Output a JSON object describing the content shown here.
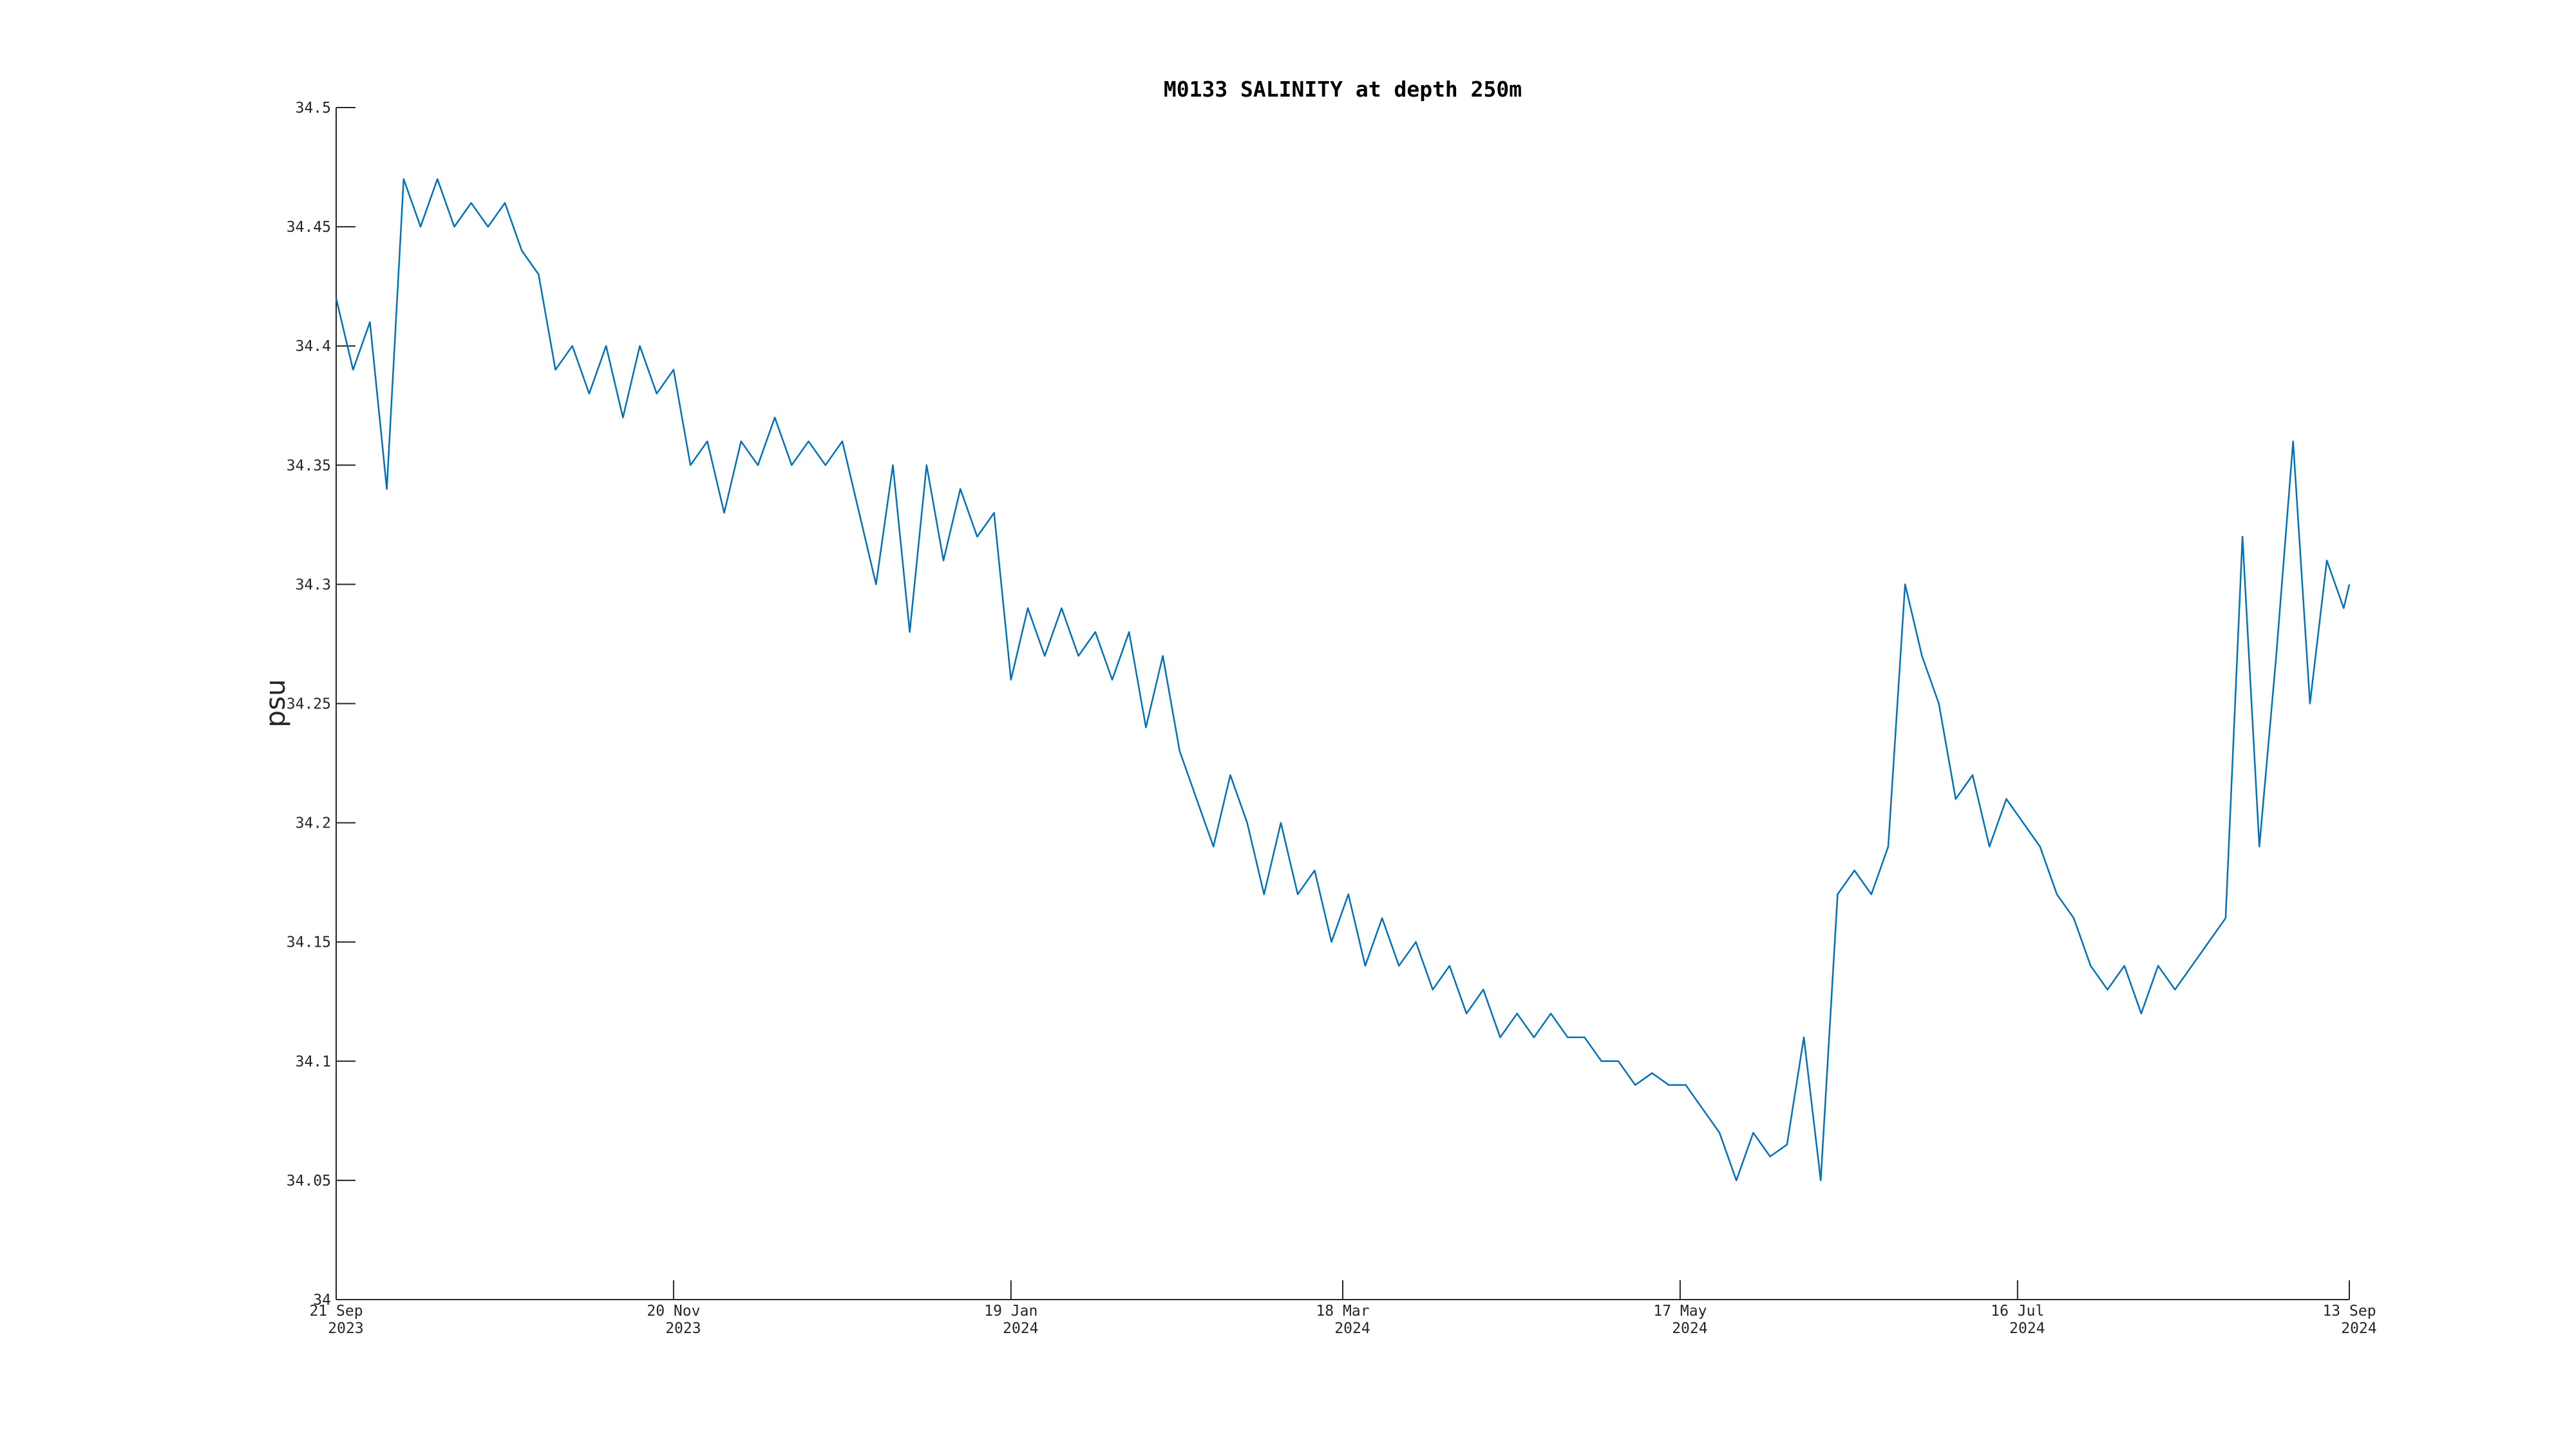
{
  "chart_data": {
    "type": "line",
    "title": "M0133 SALINITY at depth 250m",
    "y_label": "psu",
    "x": [
      "2023-09-21",
      "2023-09-24",
      "2023-09-27",
      "2023-09-30",
      "2023-10-03",
      "2023-10-06",
      "2023-10-09",
      "2023-10-12",
      "2023-10-15",
      "2023-10-18",
      "2023-10-21",
      "2023-10-24",
      "2023-10-27",
      "2023-10-30",
      "2023-11-02",
      "2023-11-05",
      "2023-11-08",
      "2023-11-11",
      "2023-11-14",
      "2023-11-17",
      "2023-11-20",
      "2023-11-23",
      "2023-11-26",
      "2023-11-29",
      "2023-12-02",
      "2023-12-05",
      "2023-12-08",
      "2023-12-11",
      "2023-12-14",
      "2023-12-17",
      "2023-12-20",
      "2023-12-23",
      "2023-12-26",
      "2023-12-29",
      "2024-01-01",
      "2024-01-04",
      "2024-01-07",
      "2024-01-10",
      "2024-01-13",
      "2024-01-16",
      "2024-01-19",
      "2024-01-22",
      "2024-01-25",
      "2024-01-28",
      "2024-01-31",
      "2024-02-03",
      "2024-02-06",
      "2024-02-09",
      "2024-02-12",
      "2024-02-15",
      "2024-02-18",
      "2024-02-21",
      "2024-02-24",
      "2024-02-27",
      "2024-03-01",
      "2024-03-04",
      "2024-03-07",
      "2024-03-10",
      "2024-03-13",
      "2024-03-16",
      "2024-03-19",
      "2024-03-22",
      "2024-03-25",
      "2024-03-28",
      "2024-03-31",
      "2024-04-03",
      "2024-04-06",
      "2024-04-09",
      "2024-04-12",
      "2024-04-15",
      "2024-04-18",
      "2024-04-21",
      "2024-04-24",
      "2024-04-27",
      "2024-04-30",
      "2024-05-03",
      "2024-05-06",
      "2024-05-09",
      "2024-05-12",
      "2024-05-15",
      "2024-05-18",
      "2024-05-21",
      "2024-05-24",
      "2024-05-27",
      "2024-05-30",
      "2024-06-02",
      "2024-06-05",
      "2024-06-08",
      "2024-06-11",
      "2024-06-14",
      "2024-06-17",
      "2024-06-20",
      "2024-06-23",
      "2024-06-26",
      "2024-06-29",
      "2024-07-02",
      "2024-07-05",
      "2024-07-08",
      "2024-07-11",
      "2024-07-14",
      "2024-07-17",
      "2024-07-20",
      "2024-07-23",
      "2024-07-26",
      "2024-07-29",
      "2024-08-01",
      "2024-08-04",
      "2024-08-07",
      "2024-08-10",
      "2024-08-13",
      "2024-08-16",
      "2024-08-19",
      "2024-08-22",
      "2024-08-25",
      "2024-08-28",
      "2024-08-31",
      "2024-09-03",
      "2024-09-06",
      "2024-09-09",
      "2024-09-12",
      "2024-09-13"
    ],
    "series": [
      {
        "color": "#0072bd",
        "values": [
          34.42,
          34.39,
          34.41,
          34.34,
          34.47,
          34.45,
          34.47,
          34.45,
          34.46,
          34.45,
          34.46,
          34.44,
          34.43,
          34.39,
          34.4,
          34.38,
          34.4,
          34.37,
          34.4,
          34.38,
          34.39,
          34.35,
          34.36,
          34.33,
          34.36,
          34.35,
          34.37,
          34.35,
          34.36,
          34.35,
          34.36,
          34.33,
          34.3,
          34.35,
          34.28,
          34.35,
          34.31,
          34.34,
          34.32,
          34.33,
          34.26,
          34.29,
          34.27,
          34.29,
          34.27,
          34.28,
          34.26,
          34.28,
          34.24,
          34.27,
          34.23,
          34.21,
          34.19,
          34.22,
          34.2,
          34.17,
          34.2,
          34.17,
          34.18,
          34.15,
          34.17,
          34.14,
          34.16,
          34.14,
          34.15,
          34.13,
          34.14,
          34.12,
          34.13,
          34.11,
          34.12,
          34.11,
          34.12,
          34.11,
          34.11,
          34.1,
          34.1,
          34.09,
          34.095,
          34.09,
          34.09,
          34.08,
          34.07,
          34.05,
          34.07,
          34.06,
          34.065,
          34.11,
          34.05,
          34.17,
          34.18,
          34.17,
          34.19,
          34.3,
          34.27,
          34.25,
          34.21,
          34.22,
          34.19,
          34.21,
          34.2,
          34.19,
          34.17,
          34.16,
          34.14,
          34.13,
          34.14,
          34.12,
          34.14,
          34.13,
          34.14,
          34.15,
          34.16,
          34.32,
          34.19,
          34.27,
          34.36,
          34.25,
          34.31,
          34.29,
          34.3
        ]
      }
    ],
    "xlim": [
      "2023-09-21",
      "2024-09-13"
    ],
    "xticks": [
      {
        "value": "2023-09-21",
        "label": [
          "21 Sep",
          "2023"
        ]
      },
      {
        "value": "2023-11-20",
        "label": [
          "20 Nov",
          "2023"
        ]
      },
      {
        "value": "2024-01-19",
        "label": [
          "19 Jan",
          "2024"
        ]
      },
      {
        "value": "2024-03-18",
        "label": [
          "18 Mar",
          "2024"
        ]
      },
      {
        "value": "2024-05-17",
        "label": [
          "17 May",
          "2024"
        ]
      },
      {
        "value": "2024-07-16",
        "label": [
          "16 Jul",
          "2024"
        ]
      },
      {
        "value": "2024-09-13",
        "label": [
          "13 Sep",
          "2024"
        ]
      }
    ],
    "ylim": [
      34,
      34.5
    ],
    "yticks": [
      34,
      34.05,
      34.1,
      34.15,
      34.2,
      34.25,
      34.3,
      34.35,
      34.4,
      34.45,
      34.5
    ]
  }
}
